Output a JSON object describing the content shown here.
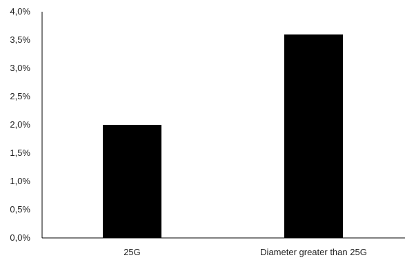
{
  "chart_data": {
    "type": "bar",
    "title": "",
    "xlabel": "",
    "ylabel": "",
    "categories": [
      "25G",
      "Diameter greater than 25G"
    ],
    "values": [
      2.0,
      3.6
    ],
    "ylim": [
      0,
      4.0
    ],
    "y_ticks": [
      "0,0%",
      "0,5%",
      "1,0%",
      "1,5%",
      "2,0%",
      "2,5%",
      "3,0%",
      "3,5%",
      "4,0%"
    ],
    "grid": false,
    "legend": "none",
    "bar_color": "#000000"
  }
}
